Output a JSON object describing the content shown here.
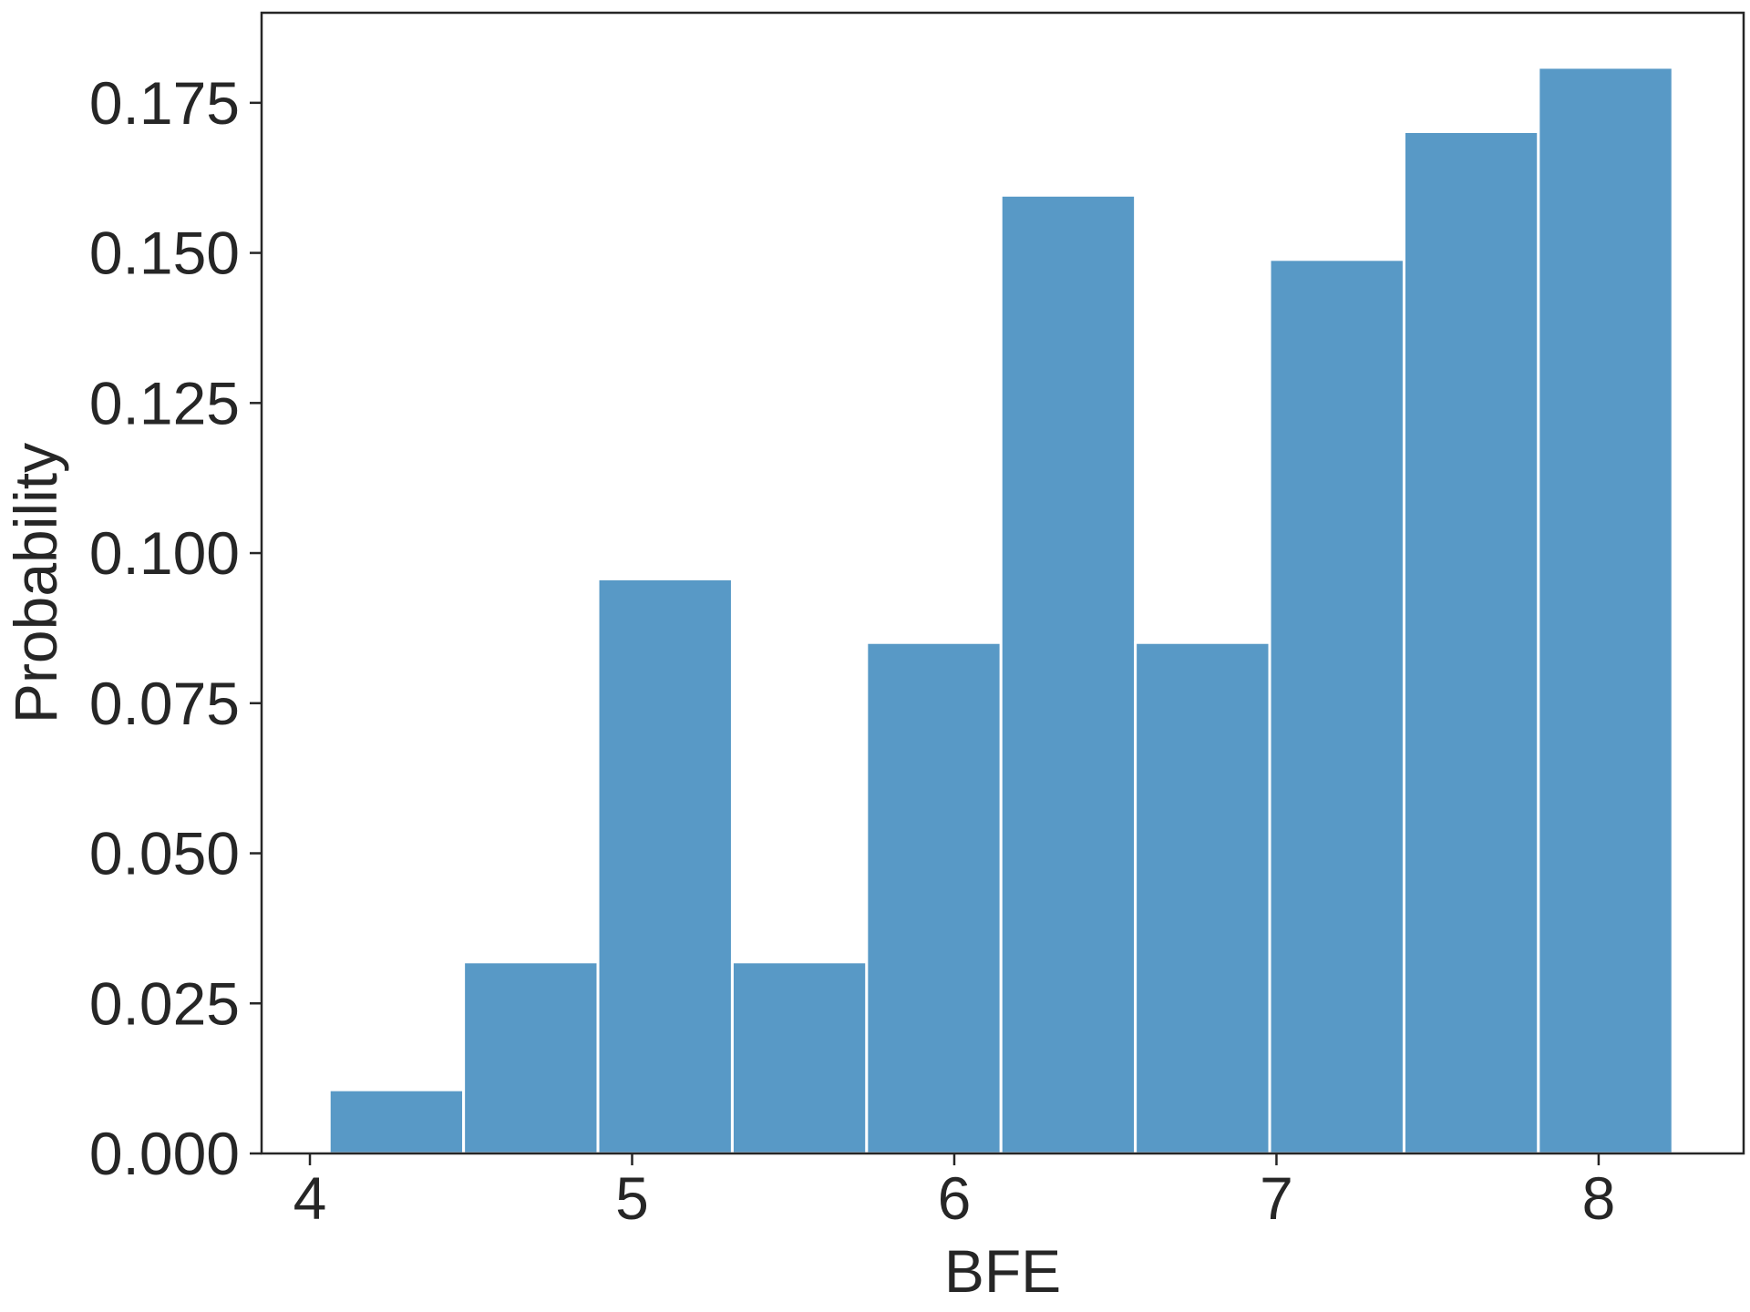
{
  "chart_data": {
    "type": "bar",
    "subtype": "histogram",
    "xlabel": "BFE",
    "ylabel": "Probability",
    "xlim": [
      3.85,
      8.45
    ],
    "ylim": [
      0.0,
      0.19
    ],
    "xticks": [
      4,
      5,
      6,
      7,
      8
    ],
    "xtick_labels": [
      "4",
      "5",
      "6",
      "7",
      "8"
    ],
    "yticks": [
      0.0,
      0.025,
      0.05,
      0.075,
      0.1,
      0.125,
      0.15,
      0.175
    ],
    "ytick_labels": [
      "0.000",
      "0.025",
      "0.050",
      "0.075",
      "0.100",
      "0.125",
      "0.150",
      "0.175"
    ],
    "bin_edges": [
      4.06,
      4.477,
      4.894,
      5.311,
      5.728,
      6.145,
      6.562,
      6.979,
      7.396,
      7.813,
      8.23
    ],
    "values": [
      0.0106,
      0.0319,
      0.0957,
      0.0319,
      0.0851,
      0.1596,
      0.0851,
      0.1489,
      0.1702,
      0.1809
    ],
    "bar_color": "#5899c6",
    "grid": false,
    "legend": "none"
  }
}
